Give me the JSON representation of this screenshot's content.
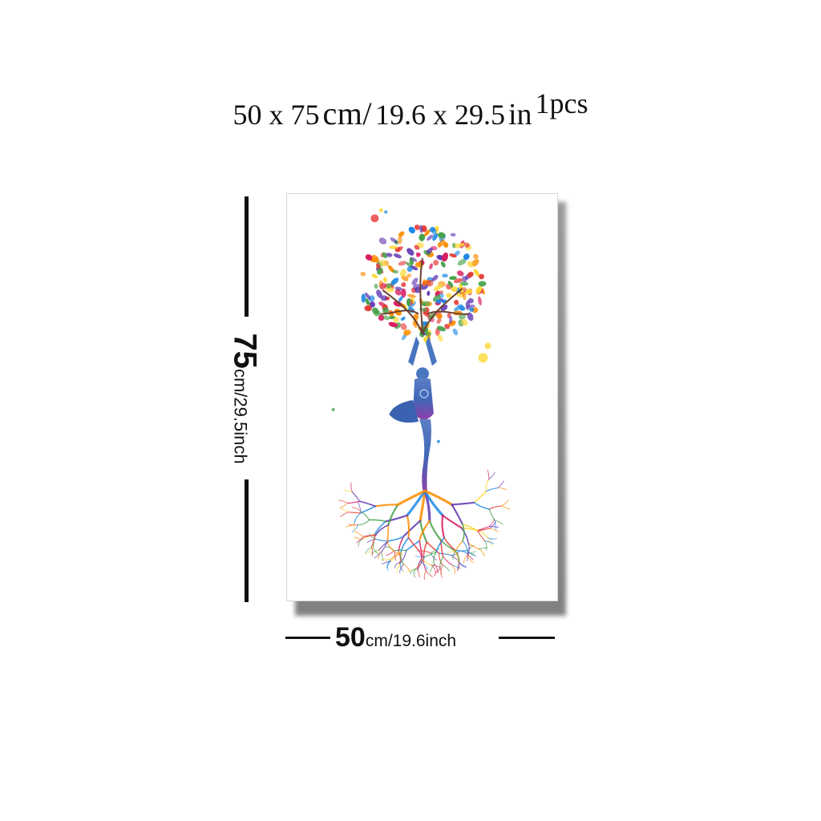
{
  "title": {
    "part1": "50 x 75",
    "part2": "cm/",
    "part3": "19.6 x 29.5",
    "part4": "in",
    "part5": "1pcs"
  },
  "height_dimension": {
    "value": "75",
    "unit": "cm/29.5inch"
  },
  "width_dimension": {
    "value": "50",
    "unit": "cm/19.6inch"
  },
  "artwork": {
    "subject": "tree-of-life-yoga-figure",
    "palette": [
      "#e53935",
      "#fb8c00",
      "#fdd835",
      "#43a047",
      "#1e88e5",
      "#5e35b1",
      "#d81b60"
    ]
  }
}
